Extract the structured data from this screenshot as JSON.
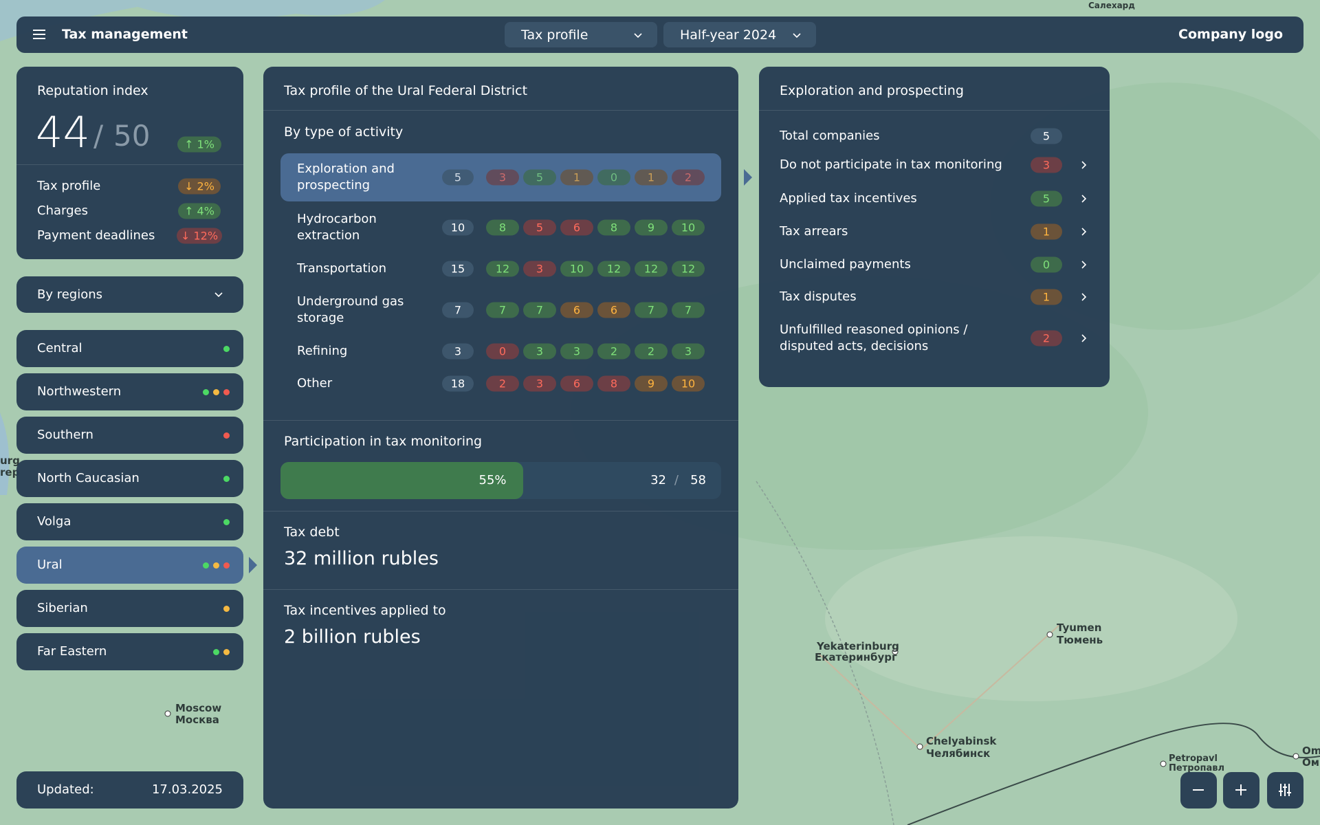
{
  "header": {
    "title": "Tax management",
    "selectors": [
      "Tax profile",
      "Half-year 2024"
    ],
    "logo": "Company logo"
  },
  "reputation": {
    "title": "Reputation index",
    "score": 44,
    "separator": "/",
    "max": 50,
    "change": {
      "label": "↑ 1%",
      "tone": "green"
    },
    "metrics": [
      {
        "label": "Tax profile",
        "change": "↓ 2%",
        "tone": "orange"
      },
      {
        "label": "Charges",
        "change": "↑ 4%",
        "tone": "green"
      },
      {
        "label": "Payment deadlines",
        "change": "↓ 12%",
        "tone": "red"
      }
    ]
  },
  "regions": {
    "selector": "By regions",
    "items": [
      {
        "name": "Central",
        "status": [
          "green"
        ]
      },
      {
        "name": "Northwestern",
        "status": [
          "green",
          "orange",
          "red"
        ]
      },
      {
        "name": "Southern",
        "status": [
          "red"
        ]
      },
      {
        "name": "North Caucasian",
        "status": [
          "green"
        ]
      },
      {
        "name": "Volga",
        "status": [
          "green"
        ]
      },
      {
        "name": "Ural",
        "status": [
          "green",
          "orange",
          "red"
        ],
        "selected": true
      },
      {
        "name": "Siberian",
        "status": [
          "orange"
        ]
      },
      {
        "name": "Far Eastern",
        "status": [
          "green",
          "orange"
        ]
      }
    ]
  },
  "updated": {
    "label": "Updated:",
    "date": "17.03.2025"
  },
  "profile": {
    "title": "Tax profile of the Ural Federal District",
    "activity_title": "By type of activity",
    "activities": [
      {
        "name": "Exploration and prospecting",
        "total": 5,
        "values": [
          3,
          5,
          1,
          0,
          1,
          2
        ],
        "tones": [
          "red",
          "green",
          "orange",
          "green",
          "orange",
          "red"
        ],
        "selected": true
      },
      {
        "name": "Hydrocarbon extraction",
        "total": 10,
        "values": [
          8,
          5,
          6,
          8,
          9,
          10
        ],
        "tones": [
          "green",
          "red",
          "red",
          "green",
          "green",
          "green"
        ]
      },
      {
        "name": "Transportation",
        "total": 15,
        "values": [
          12,
          3,
          10,
          12,
          12,
          12
        ],
        "tones": [
          "green",
          "red",
          "green",
          "green",
          "green",
          "green"
        ]
      },
      {
        "name": "Underground gas storage",
        "total": 7,
        "values": [
          7,
          7,
          6,
          6,
          7,
          7
        ],
        "tones": [
          "green",
          "green",
          "orange",
          "orange",
          "green",
          "green"
        ]
      },
      {
        "name": "Refining",
        "total": 3,
        "values": [
          0,
          3,
          3,
          2,
          2,
          3
        ],
        "tones": [
          "red",
          "green",
          "green",
          "green",
          "green",
          "green"
        ]
      },
      {
        "name": "Other",
        "total": 18,
        "values": [
          2,
          3,
          6,
          8,
          9,
          10
        ],
        "tones": [
          "red",
          "red",
          "red",
          "red",
          "orange",
          "orange"
        ]
      }
    ],
    "monitoring": {
      "title": "Participation in tax monitoring",
      "percent": 55,
      "percent_label": "55%",
      "count": 32,
      "separator": "/",
      "total": 58
    },
    "debt": {
      "title": "Tax debt",
      "value": "32 million rubles"
    },
    "incentives": {
      "title": "Tax incentives applied to",
      "value": "2 billion rubles"
    }
  },
  "details": {
    "title": "Exploration and prospecting",
    "rows": [
      {
        "label": "Total companies",
        "value": 5,
        "tone": "neutral",
        "link": false
      },
      {
        "label": "Do not participate in tax monitoring",
        "value": 3,
        "tone": "red",
        "link": true
      },
      {
        "label": "Applied tax incentives",
        "value": 5,
        "tone": "green",
        "link": true
      },
      {
        "label": "Tax arrears",
        "value": 1,
        "tone": "orange",
        "link": true
      },
      {
        "label": "Unclaimed payments",
        "value": 0,
        "tone": "green",
        "link": true
      },
      {
        "label": "Tax disputes",
        "value": 1,
        "tone": "orange",
        "link": true
      },
      {
        "label": "Unfulfilled reasoned opinions / disputed acts, decisions",
        "value": 2,
        "tone": "red",
        "link": true
      }
    ]
  },
  "map_labels": [
    "Салехард",
    "Moscow",
    "Москва",
    "Yekaterinburg",
    "Екатеринбург",
    "Tyumen",
    "Тюмень",
    "Chelyabinsk",
    "Челябинск",
    "Petropavl",
    "Петропавл",
    "Om",
    "Ом",
    "urg",
    "rep"
  ]
}
